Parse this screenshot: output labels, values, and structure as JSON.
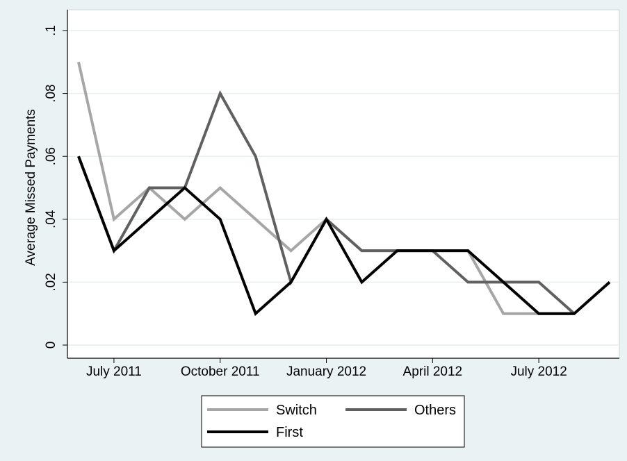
{
  "chart_data": {
    "type": "line",
    "title": "",
    "xlabel": "",
    "ylabel": "Average Missed Payments",
    "x": [
      "2011-06",
      "2011-07",
      "2011-08",
      "2011-09",
      "2011-10",
      "2011-11",
      "2011-12",
      "2012-01",
      "2012-02",
      "2012-03",
      "2012-04",
      "2012-05",
      "2012-06",
      "2012-07",
      "2012-08",
      "2012-09"
    ],
    "x_ticks": [
      {
        "x": "2011-07",
        "label": "July 2011"
      },
      {
        "x": "2011-10",
        "label": "October 2011"
      },
      {
        "x": "2012-01",
        "label": "January 2012"
      },
      {
        "x": "2012-04",
        "label": "April 2012"
      },
      {
        "x": "2012-07",
        "label": "July 2012"
      }
    ],
    "y_ticks": [
      {
        "value": 0,
        "label": "0"
      },
      {
        "value": 0.02,
        "label": ".02"
      },
      {
        "value": 0.04,
        "label": ".04"
      },
      {
        "value": 0.06,
        "label": ".06"
      },
      {
        "value": 0.08,
        "label": ".08"
      },
      {
        "value": 0.1,
        "label": ".1"
      }
    ],
    "ylim": [
      0,
      0.1
    ],
    "grid": true,
    "legend_position": "bottom",
    "series": [
      {
        "name": "Switch",
        "color": "#a6a6a6",
        "values": [
          0.09,
          0.04,
          0.05,
          0.04,
          0.05,
          0.04,
          0.03,
          0.04,
          0.03,
          0.03,
          0.03,
          0.03,
          0.01,
          0.01,
          0.01,
          null
        ]
      },
      {
        "name": "Others",
        "color": "#606060",
        "values": [
          0.06,
          0.03,
          0.05,
          0.05,
          0.08,
          0.06,
          0.02,
          0.04,
          0.03,
          0.03,
          0.03,
          0.02,
          0.02,
          0.02,
          0.01,
          null
        ]
      },
      {
        "name": "First",
        "color": "#000000",
        "values": [
          0.06,
          0.03,
          0.04,
          0.05,
          0.04,
          0.01,
          0.02,
          0.04,
          0.02,
          0.03,
          0.03,
          0.03,
          0.02,
          0.01,
          0.01,
          0.02
        ]
      }
    ]
  }
}
